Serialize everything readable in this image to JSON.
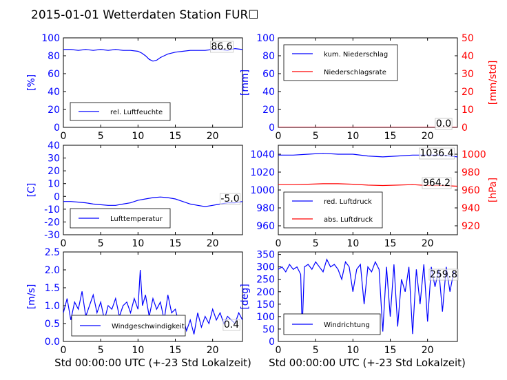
{
  "title": "2015-01-01 Wetterdaten Station FUR☐",
  "xlabel": "Std 00:00:00 UTC (+-23 Std Lokalzeit)",
  "colors": {
    "blue": "#0000ff",
    "red": "#ff0000",
    "axis": "#000000"
  },
  "chart_data": [
    {
      "type": "line",
      "id": "humidity",
      "ylabel": "[%]",
      "xlim": [
        0,
        24
      ],
      "ylim": [
        0,
        100
      ],
      "xticks": [
        0,
        5,
        10,
        15,
        20
      ],
      "yticks": [
        0,
        20,
        40,
        60,
        80,
        100
      ],
      "legend_loc": "lower-left",
      "legend": [
        "rel. Luftfeuchte"
      ],
      "annotations": [
        "86.6"
      ],
      "series": [
        {
          "name": "rel. Luftfeuchte",
          "color": "blue",
          "x": [
            0,
            1,
            2,
            3,
            4,
            5,
            6,
            7,
            8,
            9,
            10,
            10.5,
            11,
            11.5,
            12,
            12.5,
            13,
            13.5,
            14,
            15,
            16,
            17,
            18,
            19,
            20,
            21,
            22,
            23,
            24
          ],
          "y": [
            87,
            87,
            86,
            87,
            86,
            87,
            86,
            87,
            86,
            86,
            85,
            83,
            80,
            76,
            74,
            75,
            78,
            80,
            82,
            84,
            85,
            86,
            86,
            86,
            87,
            87,
            86,
            88,
            87
          ]
        }
      ]
    },
    {
      "type": "line",
      "id": "precip",
      "ylabel": "[mm]",
      "y2label": "[mm/std]",
      "xlim": [
        0,
        24
      ],
      "ylim": [
        0,
        100
      ],
      "y2lim": [
        0,
        50
      ],
      "xticks": [
        0,
        5,
        10,
        15,
        20
      ],
      "yticks": [
        0,
        20,
        40,
        60,
        80,
        100
      ],
      "y2ticks": [
        0,
        10,
        20,
        30,
        40,
        50
      ],
      "legend_loc": "upper-left",
      "legend": [
        "kum. Niederschlag",
        "Niederschlagsrate"
      ],
      "annotations": [
        "0.0",
        "0.0"
      ],
      "series": [
        {
          "name": "kum. Niederschlag",
          "color": "blue",
          "axis": "left",
          "x": [
            0,
            24
          ],
          "y": [
            0,
            0
          ]
        },
        {
          "name": "Niederschlagsrate",
          "color": "red",
          "axis": "right",
          "x": [
            0,
            24
          ],
          "y": [
            0,
            0
          ]
        }
      ]
    },
    {
      "type": "line",
      "id": "temperature",
      "ylabel": "[C]",
      "xlim": [
        0,
        24
      ],
      "ylim": [
        -30,
        40
      ],
      "xticks": [
        0,
        5,
        10,
        15,
        20
      ],
      "yticks": [
        -30,
        -20,
        -10,
        0,
        10,
        20,
        30,
        40
      ],
      "legend_loc": "lower-left",
      "legend": [
        "Lufttemperatur"
      ],
      "annotations": [
        "-5.0"
      ],
      "series": [
        {
          "name": "Lufttemperatur",
          "color": "blue",
          "x": [
            0,
            1,
            2,
            3,
            4,
            5,
            6,
            7,
            8,
            9,
            10,
            11,
            12,
            13,
            14,
            15,
            16,
            17,
            18,
            19,
            20,
            21,
            22,
            23,
            24
          ],
          "y": [
            -4,
            -4,
            -4.5,
            -5,
            -6,
            -6.5,
            -7,
            -7,
            -6,
            -5,
            -3,
            -2,
            -1,
            -0.5,
            -1,
            -2,
            -4,
            -6,
            -7,
            -8,
            -7,
            -6,
            -5,
            -5,
            -4
          ]
        }
      ]
    },
    {
      "type": "line",
      "id": "pressure",
      "y2label": "[hPa]",
      "xlim": [
        0,
        24
      ],
      "ylim": [
        950,
        1050
      ],
      "y2lim": [
        910,
        1010
      ],
      "xticks": [
        0,
        5,
        10,
        15,
        20
      ],
      "yticks": [
        960,
        980,
        1000,
        1020,
        1040
      ],
      "y2ticks": [
        920,
        940,
        960,
        980,
        1000
      ],
      "legend_loc": "lower-left",
      "legend": [
        "red. Luftdruck",
        "abs. Luftdruck"
      ],
      "annotations": [
        "1036.4",
        "964.2"
      ],
      "series": [
        {
          "name": "red. Luftdruck",
          "color": "blue",
          "axis": "left",
          "x": [
            0,
            2,
            4,
            6,
            8,
            10,
            12,
            14,
            16,
            18,
            20,
            22,
            24
          ],
          "y": [
            1039,
            1039,
            1040,
            1041,
            1040,
            1040,
            1038,
            1037,
            1038,
            1039,
            1039,
            1039,
            1037
          ]
        },
        {
          "name": "abs. Luftdruck",
          "color": "red",
          "axis": "right",
          "x": [
            0,
            2,
            4,
            6,
            8,
            10,
            12,
            14,
            16,
            18,
            20,
            22,
            24
          ],
          "y": [
            966,
            966,
            966.5,
            967,
            967,
            966.5,
            965.5,
            965,
            965.5,
            966,
            965,
            965,
            964.2
          ]
        }
      ]
    },
    {
      "type": "line",
      "id": "wind-speed",
      "ylabel": "[m/s]",
      "xlim": [
        0,
        24
      ],
      "ylim": [
        0,
        2.5
      ],
      "xticks": [
        0,
        5,
        10,
        15,
        20
      ],
      "yticks": [
        0.0,
        0.5,
        1.0,
        1.5,
        2.0,
        2.5
      ],
      "legend_loc": "lower-center",
      "legend": [
        "Windgeschwindigkeit"
      ],
      "annotations": [
        "0.4"
      ],
      "series": [
        {
          "name": "Windgeschwindigkeit",
          "color": "blue",
          "x": [
            0,
            0.5,
            1,
            1.5,
            2,
            2.5,
            3,
            3.5,
            4,
            4.5,
            5,
            5.5,
            6,
            6.5,
            7,
            7.5,
            8,
            8.5,
            9,
            9.5,
            10,
            10.3,
            10.6,
            11,
            11.5,
            12,
            12.5,
            13,
            13.5,
            14,
            14.5,
            15,
            15.5,
            16,
            16.5,
            17,
            17.5,
            18,
            18.5,
            19,
            19.5,
            20,
            20.5,
            21,
            21.5,
            22,
            22.5,
            23,
            23.5,
            24
          ],
          "y": [
            0.8,
            1.2,
            0.6,
            1.1,
            0.9,
            1.4,
            0.7,
            1.0,
            1.3,
            0.8,
            1.1,
            0.6,
            1.0,
            0.9,
            1.2,
            0.7,
            1.0,
            1.1,
            0.8,
            1.2,
            0.9,
            2.0,
            1.0,
            1.3,
            0.7,
            1.2,
            0.9,
            1.1,
            0.6,
            1.3,
            0.8,
            0.9,
            0.5,
            0.7,
            0.3,
            0.6,
            0.2,
            0.8,
            0.4,
            0.7,
            0.5,
            0.9,
            0.6,
            0.8,
            0.5,
            0.7,
            0.6,
            0.5,
            0.8,
            0.6
          ]
        }
      ]
    },
    {
      "type": "line",
      "id": "wind-direction",
      "ylabel": "[deg]",
      "xlim": [
        0,
        24
      ],
      "ylim": [
        0,
        360
      ],
      "xticks": [
        0,
        5,
        10,
        15,
        20
      ],
      "yticks": [
        0,
        50,
        100,
        150,
        200,
        250,
        300,
        350
      ],
      "legend_loc": "lower-left",
      "legend": [
        "Windrichtung"
      ],
      "annotations": [
        "259.8"
      ],
      "series": [
        {
          "name": "Windrichtung",
          "color": "blue",
          "x": [
            0,
            0.5,
            1,
            1.5,
            2,
            2.5,
            3,
            3.2,
            3.5,
            4,
            4.5,
            5,
            5.5,
            6,
            6.5,
            7,
            7.5,
            8,
            8.5,
            9,
            9.5,
            10,
            10.5,
            11,
            11.5,
            12,
            12.5,
            13,
            13.5,
            14,
            14.5,
            15,
            15.5,
            16,
            16.5,
            17,
            17.5,
            18,
            18.5,
            19,
            19.5,
            20,
            20.5,
            21,
            21.5,
            22,
            22.5,
            23,
            23.5,
            24
          ],
          "y": [
            290,
            300,
            280,
            310,
            290,
            300,
            270,
            50,
            300,
            310,
            290,
            320,
            300,
            280,
            330,
            300,
            310,
            290,
            250,
            320,
            300,
            200,
            290,
            310,
            150,
            300,
            280,
            320,
            290,
            40,
            300,
            100,
            310,
            60,
            250,
            200,
            300,
            30,
            290,
            150,
            310,
            80,
            300,
            220,
            290,
            120,
            300,
            200,
            280,
            260
          ]
        }
      ]
    }
  ]
}
